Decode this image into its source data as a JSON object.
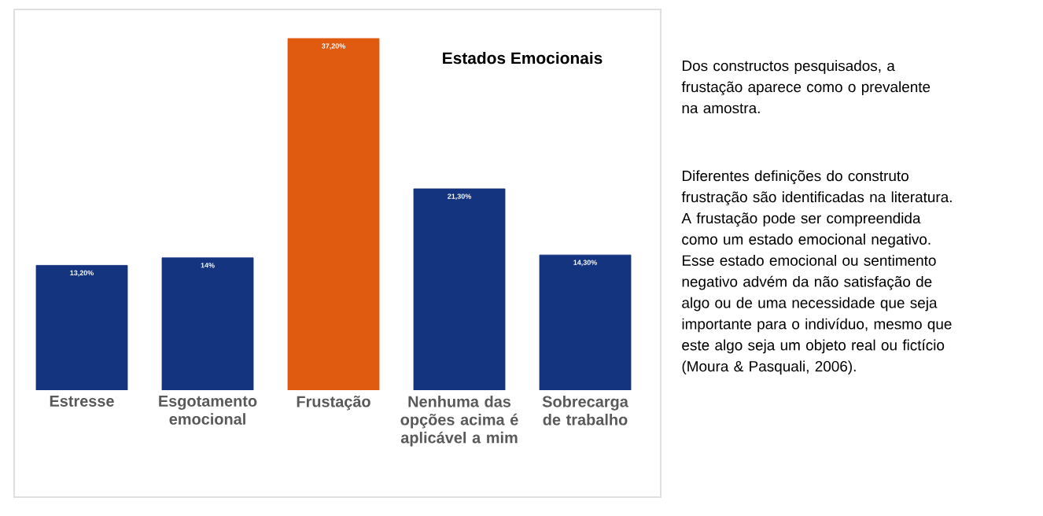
{
  "chart_data": {
    "type": "bar",
    "title": "Estados Emocionais",
    "categories": [
      "Estresse",
      "Esgotamento emocional",
      "Frustação",
      "Nenhuma das opções acima é aplicável a mim",
      "Sobrecarga de trabalho"
    ],
    "values": [
      13.2,
      14,
      37.2,
      21.3,
      14.3
    ],
    "colors": [
      "#14347f",
      "#14347f",
      "#e05a10",
      "#14347f",
      "#14347f"
    ],
    "value_labels": [
      "13,20%",
      "14%",
      "37,20%",
      "21,30%",
      "14,30%"
    ],
    "annotations": [
      "Dos constructos pesquisados, a frustação aparece como o prevalente na amostra.",
      "Diferentes definições do construto frustração são identificadas na literatura. A frustação pode ser compreendida como um estado emocional negativo. Esse estado emocional ou sentimento negativo advém da não satisfação de algo ou de uma necessidade que seja importante para o indivíduo, mesmo que este algo seja um objeto real ou fictício (Moura & Pasquali, 2006)."
    ]
  }
}
